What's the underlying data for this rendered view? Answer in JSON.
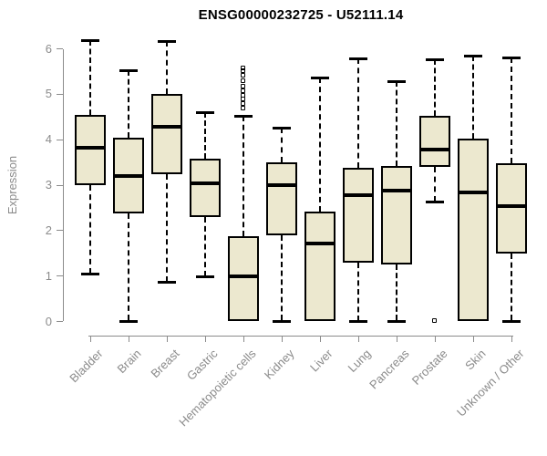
{
  "page": {
    "background": "#ffffff"
  },
  "colors": {
    "box_fill": "#ece8cf",
    "box_border": "#000000",
    "median_line": "#000000",
    "whisker_line": "#000000",
    "axis_line": "#8b8b8b",
    "axis_text": "#8b8b8b",
    "title_text": "#000000"
  },
  "chart_data": {
    "type": "boxplot",
    "title": "ENSG00000232725 - U52111.14",
    "xlabel": "",
    "ylabel": "Expression",
    "ylim": [
      0,
      6
    ],
    "yticks": [
      0,
      1,
      2,
      3,
      4,
      5,
      6
    ],
    "grid": false,
    "legend_position": "none",
    "categories": [
      "Bladder",
      "Brain",
      "Breast",
      "Gastric",
      "Hematopoietic cells",
      "Kidney",
      "Liver",
      "Lung",
      "Pancreas",
      "Prostate",
      "Skin",
      "Unknown / Other"
    ],
    "series": [
      {
        "name": "Bladder",
        "min": 1.05,
        "q1": 3.0,
        "median": 3.82,
        "q3": 4.55,
        "max": 6.2,
        "outliers": []
      },
      {
        "name": "Brain",
        "min": 0.02,
        "q1": 2.37,
        "median": 3.2,
        "q3": 4.05,
        "max": 5.52,
        "outliers": []
      },
      {
        "name": "Breast",
        "min": 0.88,
        "q1": 3.25,
        "median": 4.28,
        "q3": 5.0,
        "max": 6.17,
        "outliers": []
      },
      {
        "name": "Gastric",
        "min": 1.0,
        "q1": 2.3,
        "median": 3.05,
        "q3": 3.58,
        "max": 4.6,
        "outliers": []
      },
      {
        "name": "Hematopoietic cells",
        "min": 0.0,
        "q1": 0.0,
        "median": 1.0,
        "q3": 1.87,
        "max": 4.53,
        "outliers": [
          4.68,
          4.78,
          4.88,
          4.97,
          5.07,
          5.17,
          5.28,
          5.4,
          5.5,
          5.57
        ]
      },
      {
        "name": "Kidney",
        "min": 0.02,
        "q1": 1.9,
        "median": 3.0,
        "q3": 3.5,
        "max": 4.27,
        "outliers": []
      },
      {
        "name": "Liver",
        "min": 0.0,
        "q1": 0.0,
        "median": 1.72,
        "q3": 2.42,
        "max": 5.37,
        "outliers": []
      },
      {
        "name": "Lung",
        "min": 0.02,
        "q1": 1.3,
        "median": 2.77,
        "q3": 3.38,
        "max": 5.78,
        "outliers": []
      },
      {
        "name": "Pancreas",
        "min": 0.02,
        "q1": 1.25,
        "median": 2.88,
        "q3": 3.43,
        "max": 5.28,
        "outliers": []
      },
      {
        "name": "Prostate",
        "min": 2.63,
        "q1": 3.4,
        "median": 3.78,
        "q3": 4.53,
        "max": 5.77,
        "outliers": [
          0.02
        ]
      },
      {
        "name": "Skin",
        "min": 0.0,
        "q1": 0.0,
        "median": 2.84,
        "q3": 4.03,
        "max": 5.85,
        "outliers": []
      },
      {
        "name": "Unknown / Other",
        "min": 0.02,
        "q1": 1.5,
        "median": 2.53,
        "q3": 3.48,
        "max": 5.8,
        "outliers": []
      }
    ]
  }
}
